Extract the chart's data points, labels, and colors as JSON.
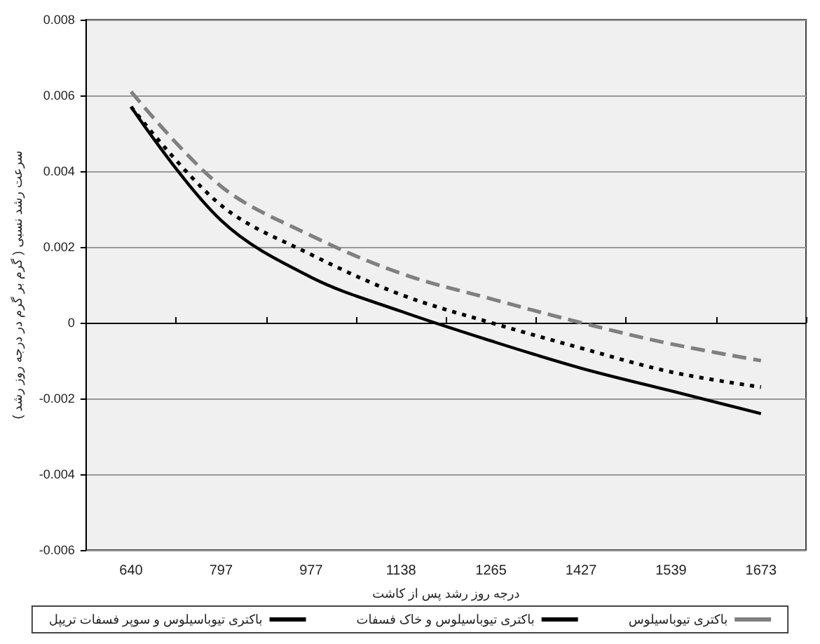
{
  "chart_data": {
    "type": "line",
    "xlabel": "درجه روز رشد پس از کاشت",
    "ylabel": "سرعت رشد نسبی ( گرم بر گرم در درجه روز رشد )",
    "categories": [
      "640",
      "797",
      "977",
      "1138",
      "1265",
      "1427",
      "1539",
      "1673"
    ],
    "series": [
      {
        "name": "باکتری تیوباسیلوس و سوپر فسفات تریپل",
        "color": "#000000",
        "line_style": "solid",
        "values": [
          0.0057,
          0.0027,
          0.0012,
          0.0003,
          -0.00048,
          -0.0012,
          -0.0018,
          -0.0024
        ]
      },
      {
        "name": "باکتری تیوباسیلوس و خاک فسفات",
        "color": "#000000",
        "line_style": "dotted",
        "values": [
          0.0057,
          0.0031,
          0.0018,
          0.00074,
          0,
          -0.00067,
          -0.0013,
          -0.0017
        ]
      },
      {
        "name": "باکتری تیوباسیلوس",
        "color": "#808080",
        "line_style": "dashed",
        "values": [
          0.0061,
          0.0036,
          0.0023,
          0.0013,
          0.00063,
          0,
          -0.00056,
          -0.001
        ]
      }
    ],
    "ylim": [
      -0.006,
      0.008
    ],
    "yticks": [
      -0.006,
      -0.004,
      -0.002,
      0,
      0.002,
      0.004,
      0.006,
      0.008
    ],
    "grid": "y",
    "legend": "bottom",
    "marker": "none"
  }
}
